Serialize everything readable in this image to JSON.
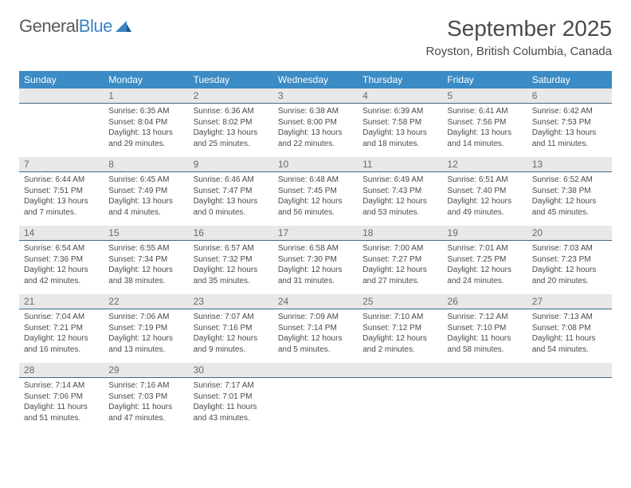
{
  "logo": {
    "word1": "General",
    "word2": "Blue"
  },
  "title": "September 2025",
  "location": "Royston, British Columbia, Canada",
  "colors": {
    "header_bg": "#3b8bc4",
    "header_text": "#ffffff",
    "daynum_bg": "#e8e8e8",
    "daynum_text": "#6a6a6a",
    "daynum_border": "#3b6a8a",
    "body_text": "#4a4a4a",
    "logo_gray": "#5a5a5a",
    "logo_blue": "#3b82c4"
  },
  "weekdays": [
    "Sunday",
    "Monday",
    "Tuesday",
    "Wednesday",
    "Thursday",
    "Friday",
    "Saturday"
  ],
  "weeks": [
    [
      null,
      {
        "n": "1",
        "sr": "Sunrise: 6:35 AM",
        "ss": "Sunset: 8:04 PM",
        "dl1": "Daylight: 13 hours",
        "dl2": "and 29 minutes."
      },
      {
        "n": "2",
        "sr": "Sunrise: 6:36 AM",
        "ss": "Sunset: 8:02 PM",
        "dl1": "Daylight: 13 hours",
        "dl2": "and 25 minutes."
      },
      {
        "n": "3",
        "sr": "Sunrise: 6:38 AM",
        "ss": "Sunset: 8:00 PM",
        "dl1": "Daylight: 13 hours",
        "dl2": "and 22 minutes."
      },
      {
        "n": "4",
        "sr": "Sunrise: 6:39 AM",
        "ss": "Sunset: 7:58 PM",
        "dl1": "Daylight: 13 hours",
        "dl2": "and 18 minutes."
      },
      {
        "n": "5",
        "sr": "Sunrise: 6:41 AM",
        "ss": "Sunset: 7:56 PM",
        "dl1": "Daylight: 13 hours",
        "dl2": "and 14 minutes."
      },
      {
        "n": "6",
        "sr": "Sunrise: 6:42 AM",
        "ss": "Sunset: 7:53 PM",
        "dl1": "Daylight: 13 hours",
        "dl2": "and 11 minutes."
      }
    ],
    [
      {
        "n": "7",
        "sr": "Sunrise: 6:44 AM",
        "ss": "Sunset: 7:51 PM",
        "dl1": "Daylight: 13 hours",
        "dl2": "and 7 minutes."
      },
      {
        "n": "8",
        "sr": "Sunrise: 6:45 AM",
        "ss": "Sunset: 7:49 PM",
        "dl1": "Daylight: 13 hours",
        "dl2": "and 4 minutes."
      },
      {
        "n": "9",
        "sr": "Sunrise: 6:46 AM",
        "ss": "Sunset: 7:47 PM",
        "dl1": "Daylight: 13 hours",
        "dl2": "and 0 minutes."
      },
      {
        "n": "10",
        "sr": "Sunrise: 6:48 AM",
        "ss": "Sunset: 7:45 PM",
        "dl1": "Daylight: 12 hours",
        "dl2": "and 56 minutes."
      },
      {
        "n": "11",
        "sr": "Sunrise: 6:49 AM",
        "ss": "Sunset: 7:43 PM",
        "dl1": "Daylight: 12 hours",
        "dl2": "and 53 minutes."
      },
      {
        "n": "12",
        "sr": "Sunrise: 6:51 AM",
        "ss": "Sunset: 7:40 PM",
        "dl1": "Daylight: 12 hours",
        "dl2": "and 49 minutes."
      },
      {
        "n": "13",
        "sr": "Sunrise: 6:52 AM",
        "ss": "Sunset: 7:38 PM",
        "dl1": "Daylight: 12 hours",
        "dl2": "and 45 minutes."
      }
    ],
    [
      {
        "n": "14",
        "sr": "Sunrise: 6:54 AM",
        "ss": "Sunset: 7:36 PM",
        "dl1": "Daylight: 12 hours",
        "dl2": "and 42 minutes."
      },
      {
        "n": "15",
        "sr": "Sunrise: 6:55 AM",
        "ss": "Sunset: 7:34 PM",
        "dl1": "Daylight: 12 hours",
        "dl2": "and 38 minutes."
      },
      {
        "n": "16",
        "sr": "Sunrise: 6:57 AM",
        "ss": "Sunset: 7:32 PM",
        "dl1": "Daylight: 12 hours",
        "dl2": "and 35 minutes."
      },
      {
        "n": "17",
        "sr": "Sunrise: 6:58 AM",
        "ss": "Sunset: 7:30 PM",
        "dl1": "Daylight: 12 hours",
        "dl2": "and 31 minutes."
      },
      {
        "n": "18",
        "sr": "Sunrise: 7:00 AM",
        "ss": "Sunset: 7:27 PM",
        "dl1": "Daylight: 12 hours",
        "dl2": "and 27 minutes."
      },
      {
        "n": "19",
        "sr": "Sunrise: 7:01 AM",
        "ss": "Sunset: 7:25 PM",
        "dl1": "Daylight: 12 hours",
        "dl2": "and 24 minutes."
      },
      {
        "n": "20",
        "sr": "Sunrise: 7:03 AM",
        "ss": "Sunset: 7:23 PM",
        "dl1": "Daylight: 12 hours",
        "dl2": "and 20 minutes."
      }
    ],
    [
      {
        "n": "21",
        "sr": "Sunrise: 7:04 AM",
        "ss": "Sunset: 7:21 PM",
        "dl1": "Daylight: 12 hours",
        "dl2": "and 16 minutes."
      },
      {
        "n": "22",
        "sr": "Sunrise: 7:06 AM",
        "ss": "Sunset: 7:19 PM",
        "dl1": "Daylight: 12 hours",
        "dl2": "and 13 minutes."
      },
      {
        "n": "23",
        "sr": "Sunrise: 7:07 AM",
        "ss": "Sunset: 7:16 PM",
        "dl1": "Daylight: 12 hours",
        "dl2": "and 9 minutes."
      },
      {
        "n": "24",
        "sr": "Sunrise: 7:09 AM",
        "ss": "Sunset: 7:14 PM",
        "dl1": "Daylight: 12 hours",
        "dl2": "and 5 minutes."
      },
      {
        "n": "25",
        "sr": "Sunrise: 7:10 AM",
        "ss": "Sunset: 7:12 PM",
        "dl1": "Daylight: 12 hours",
        "dl2": "and 2 minutes."
      },
      {
        "n": "26",
        "sr": "Sunrise: 7:12 AM",
        "ss": "Sunset: 7:10 PM",
        "dl1": "Daylight: 11 hours",
        "dl2": "and 58 minutes."
      },
      {
        "n": "27",
        "sr": "Sunrise: 7:13 AM",
        "ss": "Sunset: 7:08 PM",
        "dl1": "Daylight: 11 hours",
        "dl2": "and 54 minutes."
      }
    ],
    [
      {
        "n": "28",
        "sr": "Sunrise: 7:14 AM",
        "ss": "Sunset: 7:06 PM",
        "dl1": "Daylight: 11 hours",
        "dl2": "and 51 minutes."
      },
      {
        "n": "29",
        "sr": "Sunrise: 7:16 AM",
        "ss": "Sunset: 7:03 PM",
        "dl1": "Daylight: 11 hours",
        "dl2": "and 47 minutes."
      },
      {
        "n": "30",
        "sr": "Sunrise: 7:17 AM",
        "ss": "Sunset: 7:01 PM",
        "dl1": "Daylight: 11 hours",
        "dl2": "and 43 minutes."
      },
      null,
      null,
      null,
      null
    ]
  ]
}
